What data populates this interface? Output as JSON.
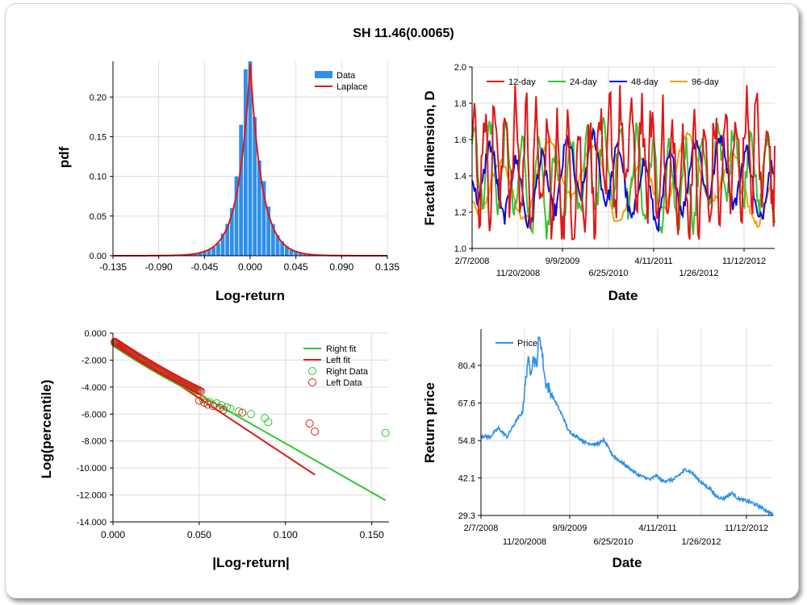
{
  "title": "SH 11.46(0.0065)",
  "chart_data": [
    {
      "type": "bar",
      "xlabel": "Log-return",
      "ylabel": "pdf",
      "xlim": [
        -0.135,
        0.135
      ],
      "ylim": [
        0,
        0.245
      ],
      "x_ticks": [
        "-0.135",
        "-0.090",
        "-0.045",
        "0.000",
        "0.045",
        "0.090",
        "0.135"
      ],
      "y_ticks": [
        "0.00",
        "0.05",
        "0.10",
        "0.15",
        "0.20"
      ],
      "legend": [
        "Data",
        "Laplace"
      ],
      "legend_position": "top-right",
      "bin_width": 0.0045,
      "bars": {
        "x": [
          -0.1125,
          -0.108,
          -0.0765,
          -0.0675,
          -0.063,
          -0.0585,
          -0.054,
          -0.0495,
          -0.045,
          -0.0405,
          -0.036,
          -0.0315,
          -0.027,
          -0.0225,
          -0.018,
          -0.0135,
          -0.009,
          -0.0045,
          0.0,
          0.0045,
          0.009,
          0.0135,
          0.018,
          0.0225,
          0.027,
          0.0315,
          0.036,
          0.0405,
          0.045,
          0.0495,
          0.054,
          0.0585,
          0.063,
          0.072,
          0.081,
          0.099
        ],
        "y": [
          0.001,
          0.001,
          0.001,
          0.001,
          0.002,
          0.002,
          0.002,
          0.004,
          0.006,
          0.008,
          0.011,
          0.016,
          0.028,
          0.04,
          0.06,
          0.1,
          0.165,
          0.235,
          0.245,
          0.175,
          0.12,
          0.094,
          0.062,
          0.04,
          0.026,
          0.018,
          0.012,
          0.008,
          0.006,
          0.004,
          0.003,
          0.002,
          0.002,
          0.001,
          0.001,
          0.001
        ]
      },
      "laplace": {
        "loc": 0.0,
        "scale": 0.0118
      },
      "colors": {
        "bars": "#2f8fea",
        "fit": "#e01818"
      }
    },
    {
      "type": "line",
      "xlabel": "Date",
      "ylabel": "Fractal dimension, D",
      "ylim": [
        1.0,
        2.0
      ],
      "y_ticks": [
        "1.0",
        "1.2",
        "1.4",
        "1.6",
        "1.8",
        "2.0"
      ],
      "x_ticks_top": [
        "2/7/2008",
        "9/9/2009",
        "4/11/2011",
        "11/12/2012"
      ],
      "x_ticks_bottom": [
        "11/20/2008",
        "6/25/2010",
        "1/26/2012"
      ],
      "series_names": [
        "12-day",
        "24-day",
        "48-day",
        "96-day"
      ],
      "series_colors": [
        "#e01818",
        "#33c633",
        "#0a0ad6",
        "#f5a00a"
      ],
      "legend_position": "top"
    },
    {
      "type": "scatter",
      "xlabel": "|Log-return|",
      "ylabel": "Log(percentile)",
      "xlim": [
        0.0,
        0.16
      ],
      "ylim": [
        -14.0,
        0.0
      ],
      "x_ticks": [
        "0.000",
        "0.050",
        "0.100",
        "0.150"
      ],
      "y_ticks": [
        "0.000",
        "-2.000",
        "-4.000",
        "-6.000",
        "-8.000",
        "-10.000",
        "-12.000",
        "-14.000"
      ],
      "legend": [
        "Right fit",
        "Left fit",
        "Right Data",
        "Left Data"
      ],
      "legend_position": "top-right",
      "right_fit": {
        "x": [
          0.0,
          0.158
        ],
        "y": [
          -0.9,
          -12.4
        ]
      },
      "left_fit": {
        "x": [
          0.0,
          0.117
        ],
        "y": [
          -0.6,
          -10.5
        ]
      },
      "right_outliers": {
        "x": [
          0.052,
          0.056,
          0.06,
          0.063,
          0.066,
          0.068,
          0.073,
          0.08,
          0.088,
          0.09,
          0.158
        ],
        "y": [
          -4.9,
          -5.1,
          -5.2,
          -5.35,
          -5.5,
          -5.6,
          -5.8,
          -6.0,
          -6.3,
          -6.6,
          -7.4
        ]
      },
      "left_outliers": {
        "x": [
          0.05,
          0.053,
          0.055,
          0.058,
          0.062,
          0.064,
          0.075,
          0.114,
          0.117
        ],
        "y": [
          -5.0,
          -5.15,
          -5.3,
          -5.4,
          -5.55,
          -5.7,
          -5.9,
          -6.7,
          -7.3
        ]
      },
      "colors": {
        "right": "#33c633",
        "left": "#e01818"
      }
    },
    {
      "type": "line",
      "xlabel": "Date",
      "ylabel": "Return price",
      "ylim": [
        29.3,
        90.0
      ],
      "y_ticks": [
        "80.4",
        "67.6",
        "54.8",
        "42.1",
        "29.3"
      ],
      "x_ticks_top": [
        "2/7/2008",
        "9/9/2009",
        "4/11/2011",
        "11/12/2012"
      ],
      "x_ticks_bottom": [
        "11/20/2008",
        "6/25/2010",
        "1/26/2012"
      ],
      "series_names": [
        "Price"
      ],
      "series_colors": [
        "#2f8fea"
      ],
      "legend_position": "top-left",
      "price_path": {
        "t": [
          0,
          0.03,
          0.06,
          0.09,
          0.1,
          0.13,
          0.14,
          0.15,
          0.16,
          0.17,
          0.18,
          0.19,
          0.2,
          0.21,
          0.22,
          0.25,
          0.28,
          0.3,
          0.33,
          0.36,
          0.4,
          0.42,
          0.45,
          0.46,
          0.5,
          0.54,
          0.58,
          0.6,
          0.62,
          0.66,
          0.7,
          0.72,
          0.76,
          0.79,
          0.8,
          0.83,
          0.86,
          0.88,
          0.9,
          0.93,
          0.96,
          1.0
        ],
        "v": [
          56.5,
          56.0,
          59.0,
          56.0,
          58.0,
          63.0,
          64.0,
          72.0,
          82.0,
          79.0,
          83.0,
          80.0,
          92.0,
          84.0,
          75.0,
          69.0,
          63.0,
          58.0,
          56.0,
          54.0,
          53.5,
          55.0,
          50.0,
          49.0,
          46.0,
          43.0,
          41.5,
          43.0,
          41.0,
          41.5,
          45.0,
          44.0,
          40.0,
          38.0,
          36.0,
          35.0,
          37.0,
          35.0,
          34.5,
          33.5,
          32.0,
          29.5
        ]
      }
    }
  ]
}
